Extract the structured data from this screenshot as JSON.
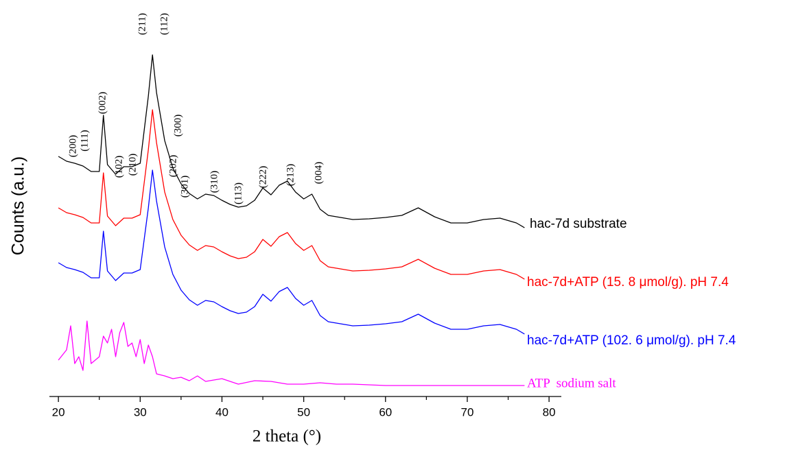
{
  "chart_data": {
    "type": "line",
    "x_label": "2 theta (°)",
    "y_label": "Counts (a.u.)",
    "xlim": [
      18.9,
      81.5
    ],
    "ylim": [
      0,
      100
    ],
    "xticks": [
      20,
      30,
      40,
      50,
      60,
      70,
      80
    ],
    "minor_xticks": [
      25,
      35,
      45,
      55,
      65,
      75
    ],
    "annotations": [
      "(200)",
      "(111)",
      "(002)",
      "(102)",
      "(210)",
      "(211)",
      "(112)",
      "(300)",
      "(202)",
      "(301)",
      "(310)",
      "(113)",
      "(222)",
      "(213)",
      "(004)"
    ],
    "series": [
      {
        "name": "hac-7d substrate",
        "color": "#000000",
        "x": [
          20,
          21,
          22,
          23,
          24,
          25,
          25.5,
          26,
          27,
          28,
          29,
          30,
          31,
          31.5,
          32,
          33,
          34,
          35,
          36,
          37,
          38,
          39,
          40,
          41,
          42,
          43,
          44,
          45,
          46,
          47,
          48,
          49,
          50,
          51,
          52,
          53,
          54,
          55,
          56,
          58,
          60,
          62,
          64,
          66,
          68,
          70,
          72,
          74,
          76,
          77
        ],
        "values": [
          70,
          68.6,
          68,
          67.2,
          65.6,
          65.6,
          82,
          67.6,
          64.8,
          67,
          67,
          68,
          87.6,
          99.6,
          88.6,
          74.6,
          66.6,
          62,
          59.2,
          57.6,
          59,
          58.6,
          57.2,
          56,
          55.2,
          55.6,
          57.2,
          60.8,
          58.8,
          61.6,
          62.8,
          59.6,
          57.6,
          59,
          54.6,
          52.8,
          52.4,
          52,
          51.6,
          51.8,
          52.2,
          52.8,
          55,
          52.4,
          50.6,
          50.6,
          51.6,
          52,
          50.6,
          49.2
        ]
      },
      {
        "name": "hac-7d+ATP (15. 8 μmol/g). pH 7.4",
        "color": "#ff0000",
        "x": [
          20,
          21,
          22,
          23,
          24,
          25,
          25.5,
          26,
          27,
          28,
          29,
          30,
          31,
          31.5,
          32,
          33,
          34,
          35,
          36,
          37,
          38,
          39,
          40,
          41,
          42,
          43,
          44,
          45,
          46,
          47,
          48,
          49,
          50,
          51,
          52,
          53,
          54,
          55,
          56,
          58,
          60,
          62,
          64,
          66,
          68,
          70,
          72,
          74,
          76,
          77
        ],
        "values": [
          55,
          53.6,
          53,
          52.2,
          50.6,
          50.6,
          65.2,
          52.6,
          49.8,
          52,
          52,
          53,
          72,
          83.6,
          74,
          59.6,
          51.6,
          47,
          44.2,
          42.6,
          44,
          43.6,
          42.2,
          41,
          40.2,
          40.6,
          42.2,
          45.8,
          43.8,
          46.6,
          47.8,
          44.6,
          42.6,
          44,
          39.6,
          37.8,
          37.4,
          37,
          36.6,
          36.8,
          37.2,
          37.8,
          40,
          37.4,
          35.6,
          35.6,
          36.6,
          37,
          35.6,
          34.2
        ]
      },
      {
        "name": "hac-7d+ATP (102. 6 μmol/g). pH 7.4",
        "color": "#0000ff",
        "x": [
          20,
          21,
          22,
          23,
          24,
          25,
          25.5,
          26,
          27,
          28,
          29,
          30,
          31,
          31.5,
          32,
          33,
          34,
          35,
          36,
          37,
          38,
          39,
          40,
          41,
          42,
          43,
          44,
          45,
          46,
          47,
          48,
          49,
          50,
          51,
          52,
          53,
          54,
          55,
          56,
          58,
          60,
          62,
          64,
          66,
          68,
          70,
          72,
          74,
          76,
          77
        ],
        "values": [
          39,
          37.6,
          37,
          36.2,
          34.6,
          34.6,
          48.2,
          36.6,
          33.8,
          36,
          36,
          37,
          55,
          66,
          57,
          43.6,
          35.6,
          31,
          28.2,
          26.6,
          28,
          27.6,
          26.2,
          25,
          24.2,
          24.6,
          26.2,
          29.8,
          27.8,
          30.6,
          31.8,
          28.6,
          26.6,
          28,
          23.6,
          21.8,
          21.4,
          21,
          20.6,
          20.8,
          21.2,
          21.8,
          24,
          21.4,
          19.6,
          19.6,
          20.6,
          21,
          19.6,
          18.2
        ]
      },
      {
        "name": "ATP  sodium salt",
        "color": "#ff00ff",
        "x": [
          20,
          21,
          21.5,
          22,
          22.5,
          23,
          23.5,
          24,
          25,
          25.5,
          26,
          26.5,
          27,
          27.5,
          28,
          28.5,
          29,
          29.5,
          30,
          30.5,
          31,
          31.5,
          32,
          33,
          34,
          35,
          36,
          37,
          38,
          40,
          42,
          44,
          46,
          48,
          50,
          52,
          54,
          56,
          60,
          65,
          70,
          77
        ],
        "values": [
          10.6,
          13.6,
          20.6,
          9.6,
          11.6,
          7.6,
          22,
          9.6,
          11.6,
          17.6,
          15.6,
          19.6,
          11.6,
          18.6,
          21.6,
          14.6,
          15.6,
          11.6,
          16.6,
          9.6,
          15,
          11.6,
          6.6,
          6,
          5.2,
          5.6,
          4.6,
          6,
          4.4,
          5.2,
          3.6,
          4.6,
          4.4,
          3.6,
          3.6,
          4,
          3.6,
          3.6,
          3.2,
          3.2,
          3.2,
          3.2
        ]
      }
    ]
  }
}
